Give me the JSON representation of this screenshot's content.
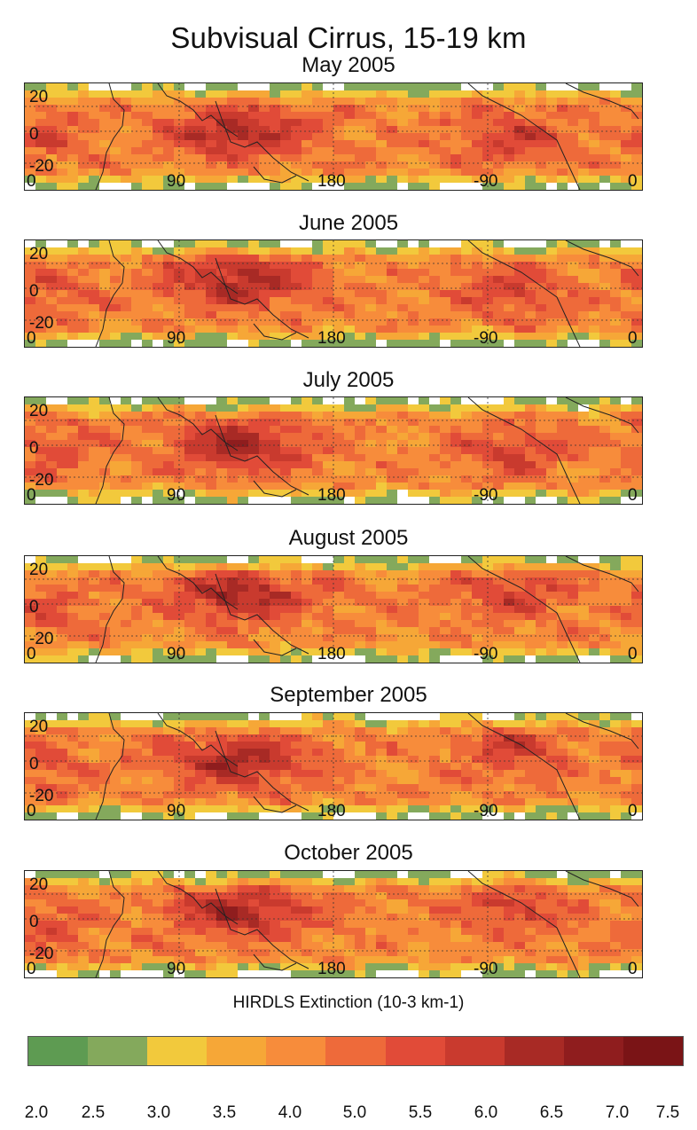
{
  "title": "Subvisual Cirrus, 15-19 km",
  "lat_labels": [
    "20",
    "0",
    "-20"
  ],
  "lon_labels": [
    "0",
    "90",
    "180",
    "-90",
    "0"
  ],
  "panels": [
    {
      "month": "May  2005"
    },
    {
      "month": "June 2005"
    },
    {
      "month": "July 2005"
    },
    {
      "month": "August  2005"
    },
    {
      "month": "September 2005"
    },
    {
      "month": "October  2005"
    }
  ],
  "colorbar": {
    "label": "HIRDLS Extinction (10-3 km-1)",
    "ticks": [
      "2.0",
      "2.5",
      "3.0",
      "3.5",
      "4.0",
      "5.0",
      "5.5",
      "6.0",
      "6.5",
      "7.0",
      "7.5"
    ],
    "colors": [
      "#5e9b52",
      "#84a95c",
      "#f2c93c",
      "#f6a737",
      "#f78c3b",
      "#ee6a3a",
      "#e14b38",
      "#c93a2e",
      "#a82a25",
      "#8f1d1e",
      "#7a1416"
    ]
  }
}
